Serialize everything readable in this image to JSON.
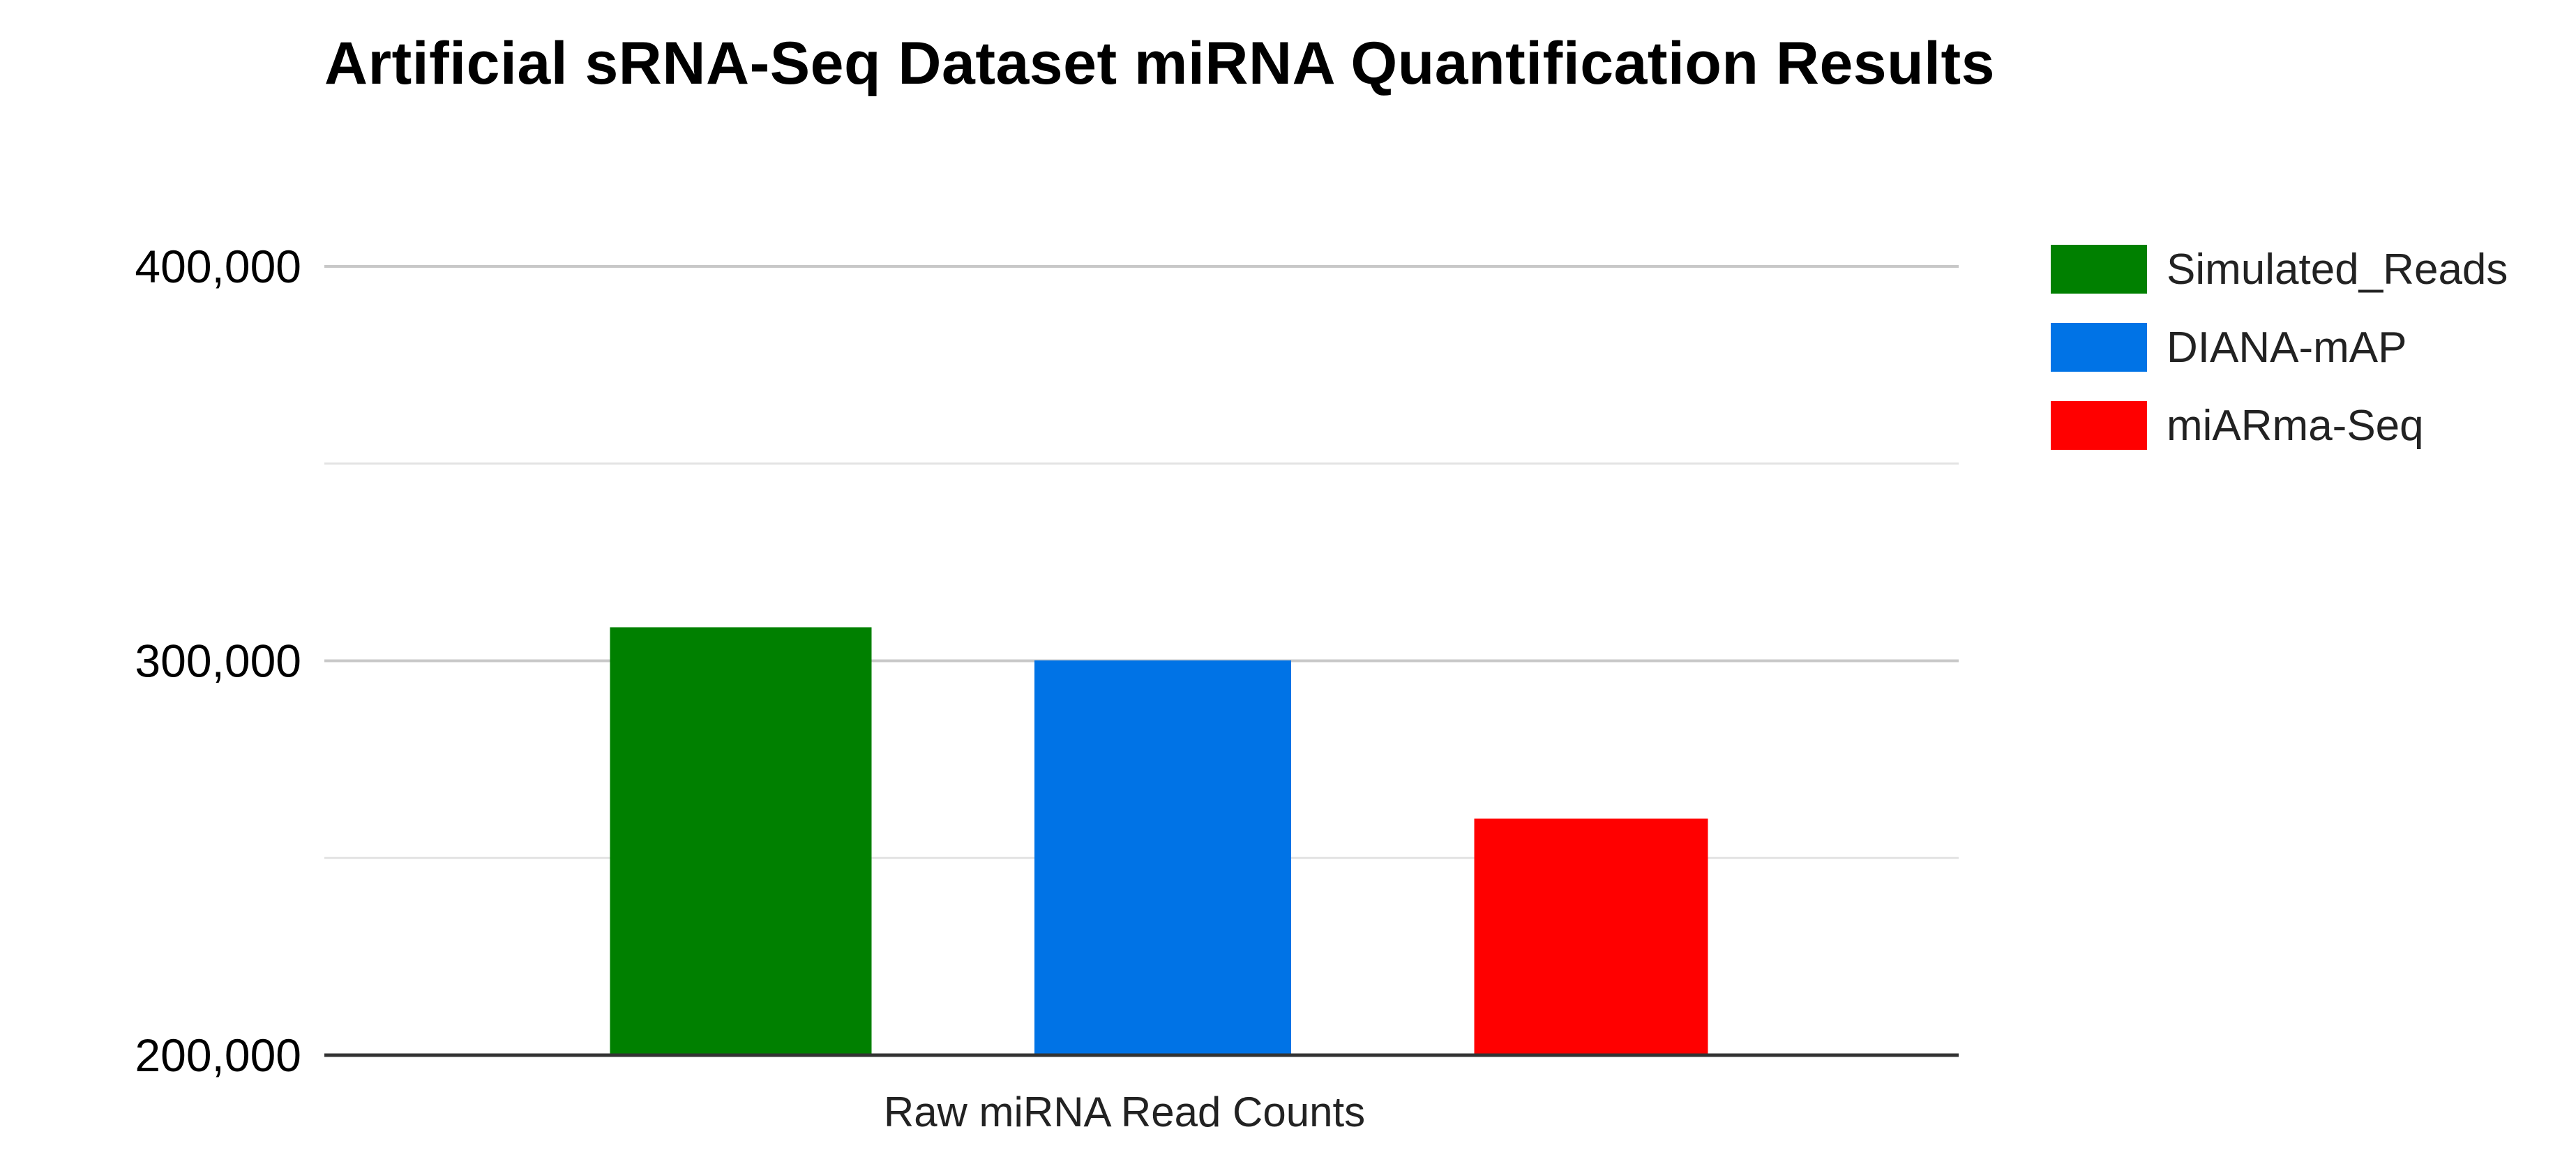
{
  "chart_data": {
    "type": "bar",
    "title": "Artificial sRNA-Seq Dataset miRNA Quantification Results",
    "categories": [
      "Raw miRNA Read Counts"
    ],
    "series": [
      {
        "name": "Simulated_Reads",
        "values": [
          308500
        ],
        "color": "#008000"
      },
      {
        "name": "DIANA-mAP",
        "values": [
          300100
        ],
        "color": "#0073E6"
      },
      {
        "name": "miARma-Seq",
        "values": [
          260000
        ],
        "color": "#FF0000"
      }
    ],
    "xlabel": "",
    "ylabel": "",
    "ylim": [
      200000,
      400000
    ],
    "yticks": [
      "200,000",
      "300,000",
      "400,000"
    ],
    "ytick_values": [
      200000,
      300000,
      400000
    ],
    "minor_gridlines": [
      250000,
      350000
    ],
    "grid": true,
    "legend_position": "right"
  }
}
